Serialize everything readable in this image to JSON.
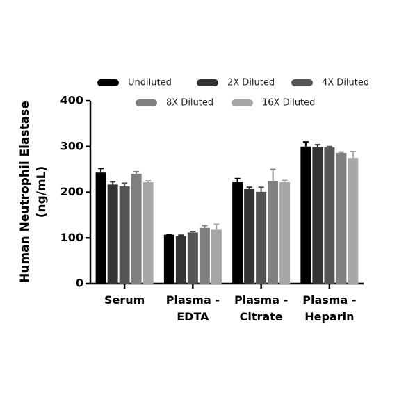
{
  "chart_data": {
    "type": "bar",
    "ylabel": "Human Neutrophil Elastase\n(ng/mL)",
    "categories": [
      "Serum",
      "Plasma -\nEDTA",
      "Plasma -\nCitrate",
      "Plasma -\nHeparin"
    ],
    "series": [
      {
        "name": "Undiluted",
        "color": "#000000",
        "values": [
          243,
          107,
          222,
          300
        ],
        "errors": [
          9,
          1,
          8,
          10
        ]
      },
      {
        "name": "2X Diluted",
        "color": "#333333",
        "values": [
          217,
          104,
          207,
          299
        ],
        "errors": [
          6,
          2,
          4,
          5
        ]
      },
      {
        "name": "4X Diluted",
        "color": "#555555",
        "values": [
          213,
          112,
          201,
          298
        ],
        "errors": [
          7,
          2,
          10,
          2
        ]
      },
      {
        "name": "8X Diluted",
        "color": "#7f7f7f",
        "values": [
          240,
          122,
          225,
          286
        ],
        "errors": [
          5,
          5,
          25,
          2
        ]
      },
      {
        "name": "16X Diluted",
        "color": "#a6a6a6",
        "values": [
          222,
          118,
          222,
          275
        ],
        "errors": [
          3,
          12,
          4,
          14
        ]
      }
    ],
    "ylim": [
      0,
      400
    ],
    "yticks": [
      0,
      100,
      200,
      300,
      400
    ],
    "legend": "top"
  }
}
